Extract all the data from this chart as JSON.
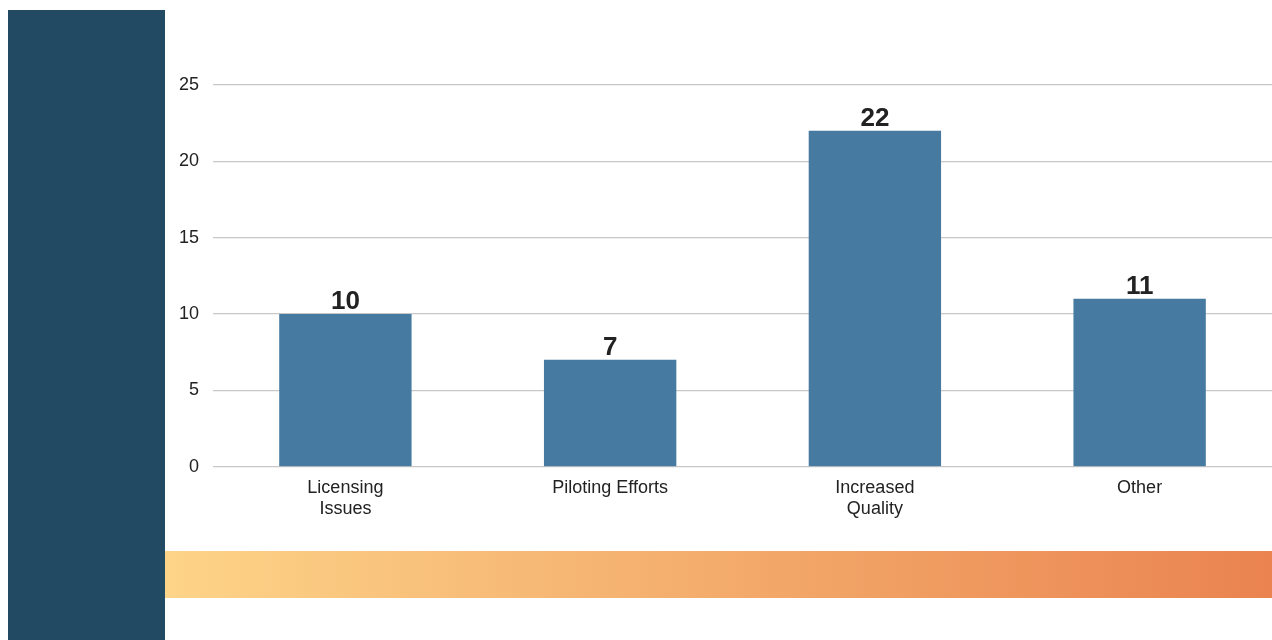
{
  "chart_data": {
    "type": "bar",
    "categories": [
      "Licensing Issues",
      "Piloting Efforts",
      "Increased Quality",
      "Other"
    ],
    "values": [
      10,
      7,
      22,
      11
    ],
    "color": "#467aa0",
    "ylim": [
      0,
      25
    ],
    "yticks": [
      0,
      5,
      10,
      15,
      20,
      25
    ],
    "grid": "y",
    "legend": false,
    "data_labels": true
  }
}
